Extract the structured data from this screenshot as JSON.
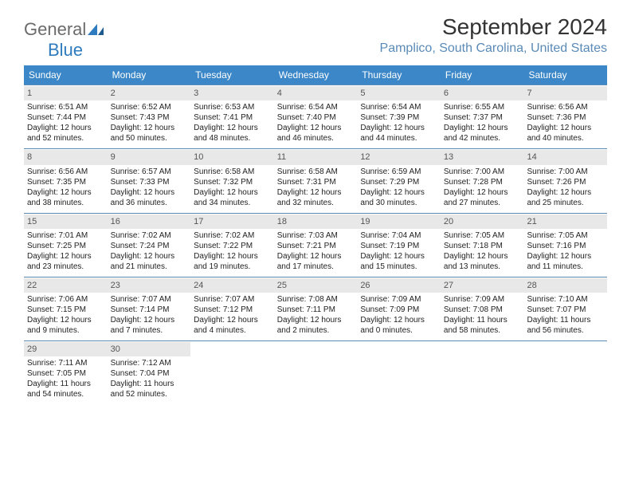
{
  "logo": {
    "part1": "General",
    "part2": "Blue"
  },
  "title": "September 2024",
  "location": "Pamplico, South Carolina, United States",
  "colors": {
    "header_bg": "#3b87c8",
    "header_text": "#ffffff",
    "border": "#5a8bb8",
    "daynum_bg": "#e8e8e8",
    "location_text": "#5a8bb8",
    "logo_blue": "#2f7bbf"
  },
  "day_names": [
    "Sunday",
    "Monday",
    "Tuesday",
    "Wednesday",
    "Thursday",
    "Friday",
    "Saturday"
  ],
  "weeks": [
    [
      {
        "n": "1",
        "sr": "Sunrise: 6:51 AM",
        "ss": "Sunset: 7:44 PM",
        "dl": "Daylight: 12 hours and 52 minutes."
      },
      {
        "n": "2",
        "sr": "Sunrise: 6:52 AM",
        "ss": "Sunset: 7:43 PM",
        "dl": "Daylight: 12 hours and 50 minutes."
      },
      {
        "n": "3",
        "sr": "Sunrise: 6:53 AM",
        "ss": "Sunset: 7:41 PM",
        "dl": "Daylight: 12 hours and 48 minutes."
      },
      {
        "n": "4",
        "sr": "Sunrise: 6:54 AM",
        "ss": "Sunset: 7:40 PM",
        "dl": "Daylight: 12 hours and 46 minutes."
      },
      {
        "n": "5",
        "sr": "Sunrise: 6:54 AM",
        "ss": "Sunset: 7:39 PM",
        "dl": "Daylight: 12 hours and 44 minutes."
      },
      {
        "n": "6",
        "sr": "Sunrise: 6:55 AM",
        "ss": "Sunset: 7:37 PM",
        "dl": "Daylight: 12 hours and 42 minutes."
      },
      {
        "n": "7",
        "sr": "Sunrise: 6:56 AM",
        "ss": "Sunset: 7:36 PM",
        "dl": "Daylight: 12 hours and 40 minutes."
      }
    ],
    [
      {
        "n": "8",
        "sr": "Sunrise: 6:56 AM",
        "ss": "Sunset: 7:35 PM",
        "dl": "Daylight: 12 hours and 38 minutes."
      },
      {
        "n": "9",
        "sr": "Sunrise: 6:57 AM",
        "ss": "Sunset: 7:33 PM",
        "dl": "Daylight: 12 hours and 36 minutes."
      },
      {
        "n": "10",
        "sr": "Sunrise: 6:58 AM",
        "ss": "Sunset: 7:32 PM",
        "dl": "Daylight: 12 hours and 34 minutes."
      },
      {
        "n": "11",
        "sr": "Sunrise: 6:58 AM",
        "ss": "Sunset: 7:31 PM",
        "dl": "Daylight: 12 hours and 32 minutes."
      },
      {
        "n": "12",
        "sr": "Sunrise: 6:59 AM",
        "ss": "Sunset: 7:29 PM",
        "dl": "Daylight: 12 hours and 30 minutes."
      },
      {
        "n": "13",
        "sr": "Sunrise: 7:00 AM",
        "ss": "Sunset: 7:28 PM",
        "dl": "Daylight: 12 hours and 27 minutes."
      },
      {
        "n": "14",
        "sr": "Sunrise: 7:00 AM",
        "ss": "Sunset: 7:26 PM",
        "dl": "Daylight: 12 hours and 25 minutes."
      }
    ],
    [
      {
        "n": "15",
        "sr": "Sunrise: 7:01 AM",
        "ss": "Sunset: 7:25 PM",
        "dl": "Daylight: 12 hours and 23 minutes."
      },
      {
        "n": "16",
        "sr": "Sunrise: 7:02 AM",
        "ss": "Sunset: 7:24 PM",
        "dl": "Daylight: 12 hours and 21 minutes."
      },
      {
        "n": "17",
        "sr": "Sunrise: 7:02 AM",
        "ss": "Sunset: 7:22 PM",
        "dl": "Daylight: 12 hours and 19 minutes."
      },
      {
        "n": "18",
        "sr": "Sunrise: 7:03 AM",
        "ss": "Sunset: 7:21 PM",
        "dl": "Daylight: 12 hours and 17 minutes."
      },
      {
        "n": "19",
        "sr": "Sunrise: 7:04 AM",
        "ss": "Sunset: 7:19 PM",
        "dl": "Daylight: 12 hours and 15 minutes."
      },
      {
        "n": "20",
        "sr": "Sunrise: 7:05 AM",
        "ss": "Sunset: 7:18 PM",
        "dl": "Daylight: 12 hours and 13 minutes."
      },
      {
        "n": "21",
        "sr": "Sunrise: 7:05 AM",
        "ss": "Sunset: 7:16 PM",
        "dl": "Daylight: 12 hours and 11 minutes."
      }
    ],
    [
      {
        "n": "22",
        "sr": "Sunrise: 7:06 AM",
        "ss": "Sunset: 7:15 PM",
        "dl": "Daylight: 12 hours and 9 minutes."
      },
      {
        "n": "23",
        "sr": "Sunrise: 7:07 AM",
        "ss": "Sunset: 7:14 PM",
        "dl": "Daylight: 12 hours and 7 minutes."
      },
      {
        "n": "24",
        "sr": "Sunrise: 7:07 AM",
        "ss": "Sunset: 7:12 PM",
        "dl": "Daylight: 12 hours and 4 minutes."
      },
      {
        "n": "25",
        "sr": "Sunrise: 7:08 AM",
        "ss": "Sunset: 7:11 PM",
        "dl": "Daylight: 12 hours and 2 minutes."
      },
      {
        "n": "26",
        "sr": "Sunrise: 7:09 AM",
        "ss": "Sunset: 7:09 PM",
        "dl": "Daylight: 12 hours and 0 minutes."
      },
      {
        "n": "27",
        "sr": "Sunrise: 7:09 AM",
        "ss": "Sunset: 7:08 PM",
        "dl": "Daylight: 11 hours and 58 minutes."
      },
      {
        "n": "28",
        "sr": "Sunrise: 7:10 AM",
        "ss": "Sunset: 7:07 PM",
        "dl": "Daylight: 11 hours and 56 minutes."
      }
    ],
    [
      {
        "n": "29",
        "sr": "Sunrise: 7:11 AM",
        "ss": "Sunset: 7:05 PM",
        "dl": "Daylight: 11 hours and 54 minutes."
      },
      {
        "n": "30",
        "sr": "Sunrise: 7:12 AM",
        "ss": "Sunset: 7:04 PM",
        "dl": "Daylight: 11 hours and 52 minutes."
      },
      null,
      null,
      null,
      null,
      null
    ]
  ]
}
